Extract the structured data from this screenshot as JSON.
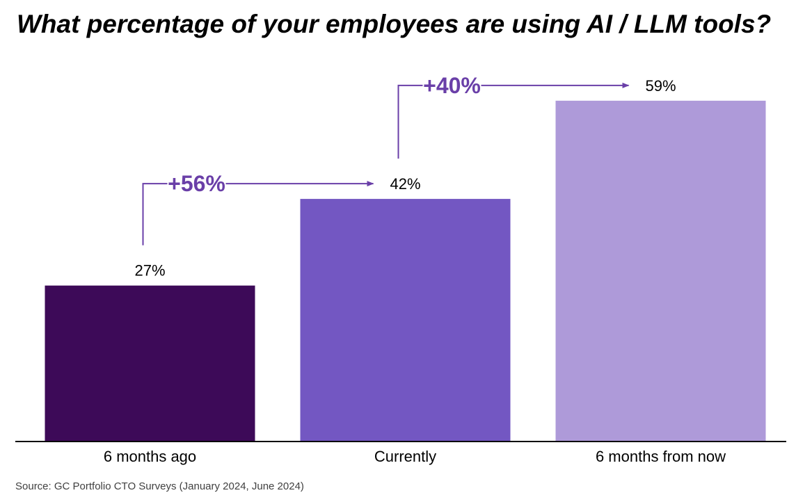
{
  "chart_data": {
    "type": "bar",
    "title": "What percentage of your employees are using AI / LLM tools?",
    "categories": [
      "6 months ago",
      "Currently",
      "6 months from now"
    ],
    "values": [
      27,
      42,
      59
    ],
    "value_labels": [
      "27%",
      "42%",
      "59%"
    ],
    "colors": [
      "#3d0a58",
      "#7357c2",
      "#ae9ad9"
    ],
    "ylim": [
      0,
      65
    ],
    "grid": false,
    "xlabel": "",
    "ylabel": "",
    "annotations": [
      {
        "text": "+56%",
        "from": "6 months ago",
        "to": "Currently"
      },
      {
        "text": "+40%",
        "from": "Currently",
        "to": "6 months from now"
      }
    ],
    "annotation_color": "#6a3fa8",
    "source": "Source: GC Portfolio CTO Surveys (January 2024, June 2024)"
  }
}
